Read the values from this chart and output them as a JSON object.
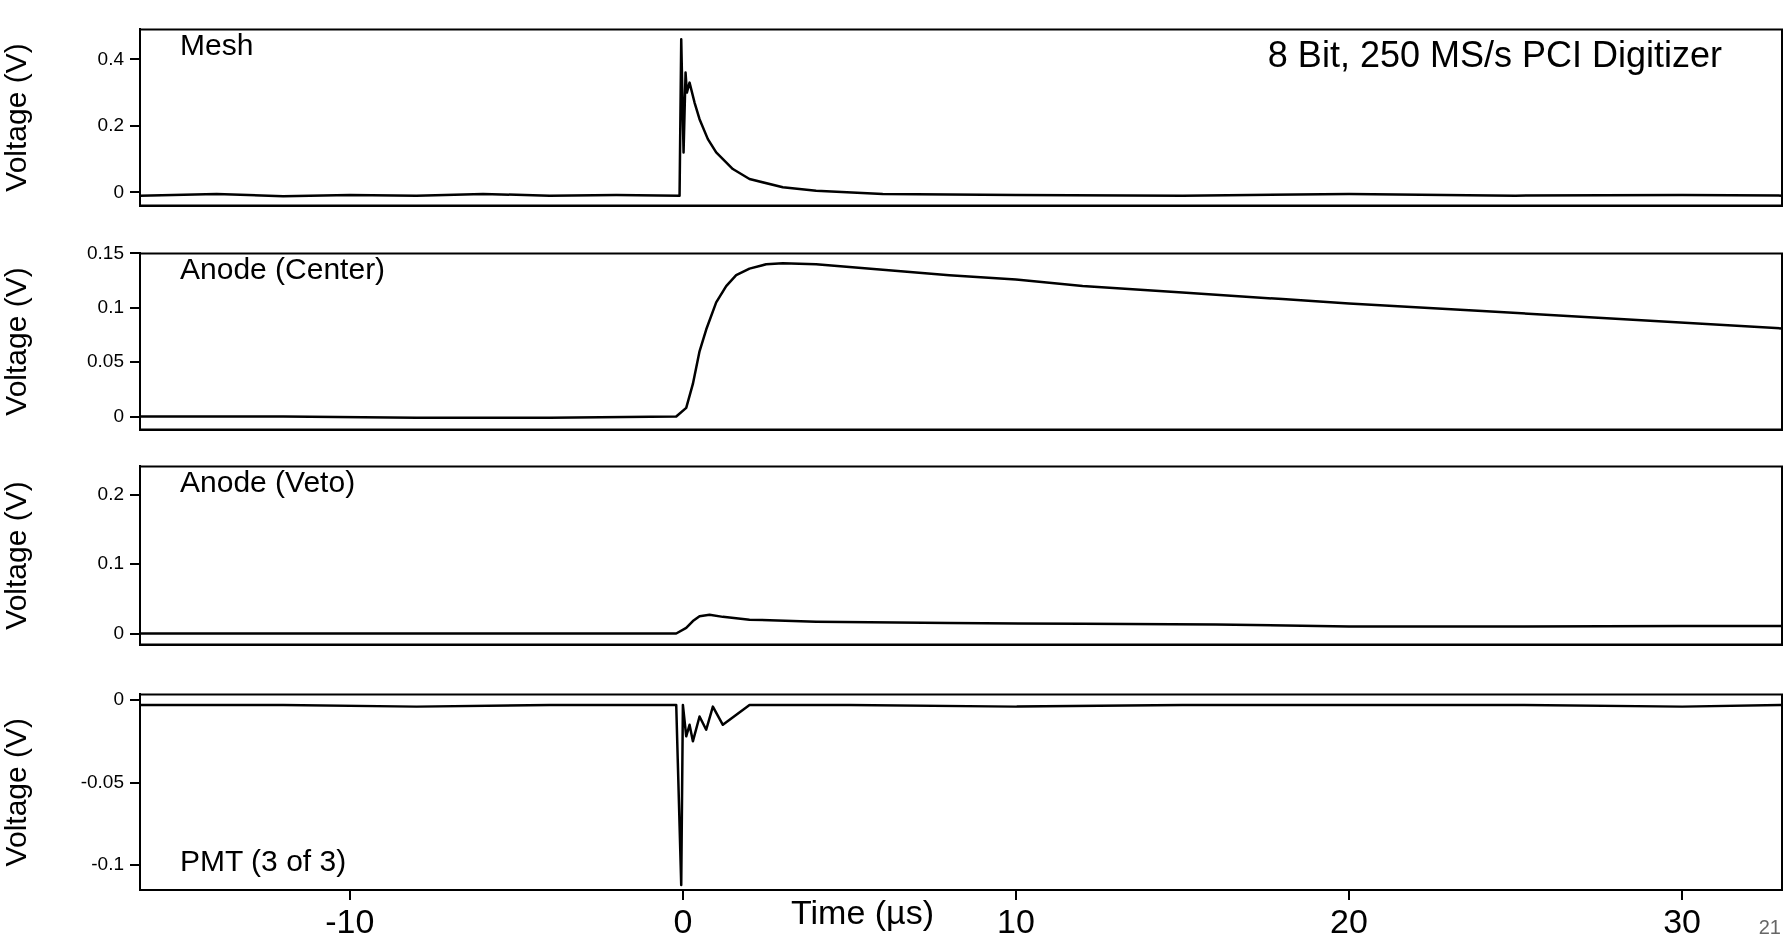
{
  "chart_data": [
    {
      "type": "line",
      "title": "Mesh",
      "ylabel": "Voltage (V)",
      "annotations": [
        "8 Bit, 250 MS/s PCI Digitizer"
      ],
      "tick_labels": "y",
      "xlim": [
        -16.3,
        33
      ],
      "ylim": [
        -0.04,
        0.49
      ],
      "yticks": [
        0,
        0.2,
        0.4
      ],
      "x": [
        -16.3,
        -14,
        -12,
        -10,
        -8,
        -6,
        -4,
        -2,
        -0.1,
        -0.05,
        0.02,
        0.08,
        0.12,
        0.2,
        0.35,
        0.5,
        0.75,
        1,
        1.5,
        2,
        3,
        4,
        6,
        10,
        15,
        20,
        25,
        30,
        33
      ],
      "series": [
        {
          "color": "#000000",
          "values": [
            -0.01,
            -0.005,
            -0.012,
            -0.008,
            -0.01,
            -0.005,
            -0.01,
            -0.008,
            -0.01,
            0.46,
            0.12,
            0.36,
            0.3,
            0.33,
            0.27,
            0.22,
            0.16,
            0.12,
            0.07,
            0.04,
            0.015,
            0.005,
            -0.005,
            -0.008,
            -0.01,
            -0.005,
            -0.01,
            -0.008,
            -0.01
          ]
        }
      ]
    },
    {
      "type": "line",
      "title": "Anode (Center)",
      "ylabel": "Voltage (V)",
      "tick_labels": "y",
      "xlim": [
        -16.3,
        33
      ],
      "ylim": [
        -0.012,
        0.15
      ],
      "yticks": [
        0,
        0.05,
        0.1,
        0.15
      ],
      "x": [
        -16.3,
        -12,
        -8,
        -4,
        -0.2,
        0.1,
        0.3,
        0.5,
        0.7,
        1,
        1.3,
        1.6,
        2,
        2.5,
        3,
        4,
        6,
        8,
        10,
        12,
        15,
        18,
        20,
        24,
        28,
        33
      ],
      "series": [
        {
          "color": "#000000",
          "values": [
            0,
            0,
            -0.001,
            -0.001,
            0,
            0.008,
            0.03,
            0.06,
            0.08,
            0.105,
            0.12,
            0.13,
            0.136,
            0.14,
            0.141,
            0.14,
            0.135,
            0.13,
            0.126,
            0.12,
            0.114,
            0.108,
            0.104,
            0.097,
            0.09,
            0.081
          ]
        }
      ]
    },
    {
      "type": "line",
      "title": "Anode (Veto)",
      "ylabel": "Voltage (V)",
      "tick_labels": "y",
      "xlim": [
        -16.3,
        33
      ],
      "ylim": [
        -0.016,
        0.241
      ],
      "yticks": [
        0,
        0.1,
        0.2
      ],
      "x": [
        -16.3,
        -10,
        -5,
        -0.2,
        0.1,
        0.3,
        0.5,
        0.8,
        1.2,
        2,
        4,
        8,
        12,
        16,
        20,
        25,
        30,
        33
      ],
      "series": [
        {
          "color": "#000000",
          "values": [
            0,
            0,
            0,
            0,
            0.008,
            0.018,
            0.025,
            0.027,
            0.024,
            0.02,
            0.017,
            0.015,
            0.014,
            0.013,
            0.01,
            0.01,
            0.011,
            0.011
          ]
        }
      ]
    },
    {
      "type": "line",
      "title": "PMT (3 of 3)",
      "ylabel": "Voltage (V)",
      "xlabel": "Time (µs)",
      "annotations": [
        "21"
      ],
      "xlim": [
        -16.3,
        33
      ],
      "ylim": [
        -0.115,
        0.0034
      ],
      "xticks": [
        -10,
        0,
        10,
        20,
        30
      ],
      "yticks": [
        -0.1,
        -0.05,
        0
      ],
      "x": [
        -16.3,
        -12,
        -8,
        -4,
        -0.2,
        -0.05,
        0,
        0.1,
        0.2,
        0.3,
        0.5,
        0.7,
        0.9,
        1.2,
        2,
        5,
        10,
        15,
        20,
        25,
        30,
        33
      ],
      "series": [
        {
          "color": "#000000",
          "values": [
            -0.003,
            -0.003,
            -0.004,
            -0.003,
            -0.003,
            -0.112,
            -0.003,
            -0.022,
            -0.015,
            -0.025,
            -0.01,
            -0.018,
            -0.004,
            -0.015,
            -0.003,
            -0.003,
            -0.004,
            -0.003,
            -0.003,
            -0.003,
            -0.004,
            -0.003
          ]
        }
      ]
    }
  ]
}
